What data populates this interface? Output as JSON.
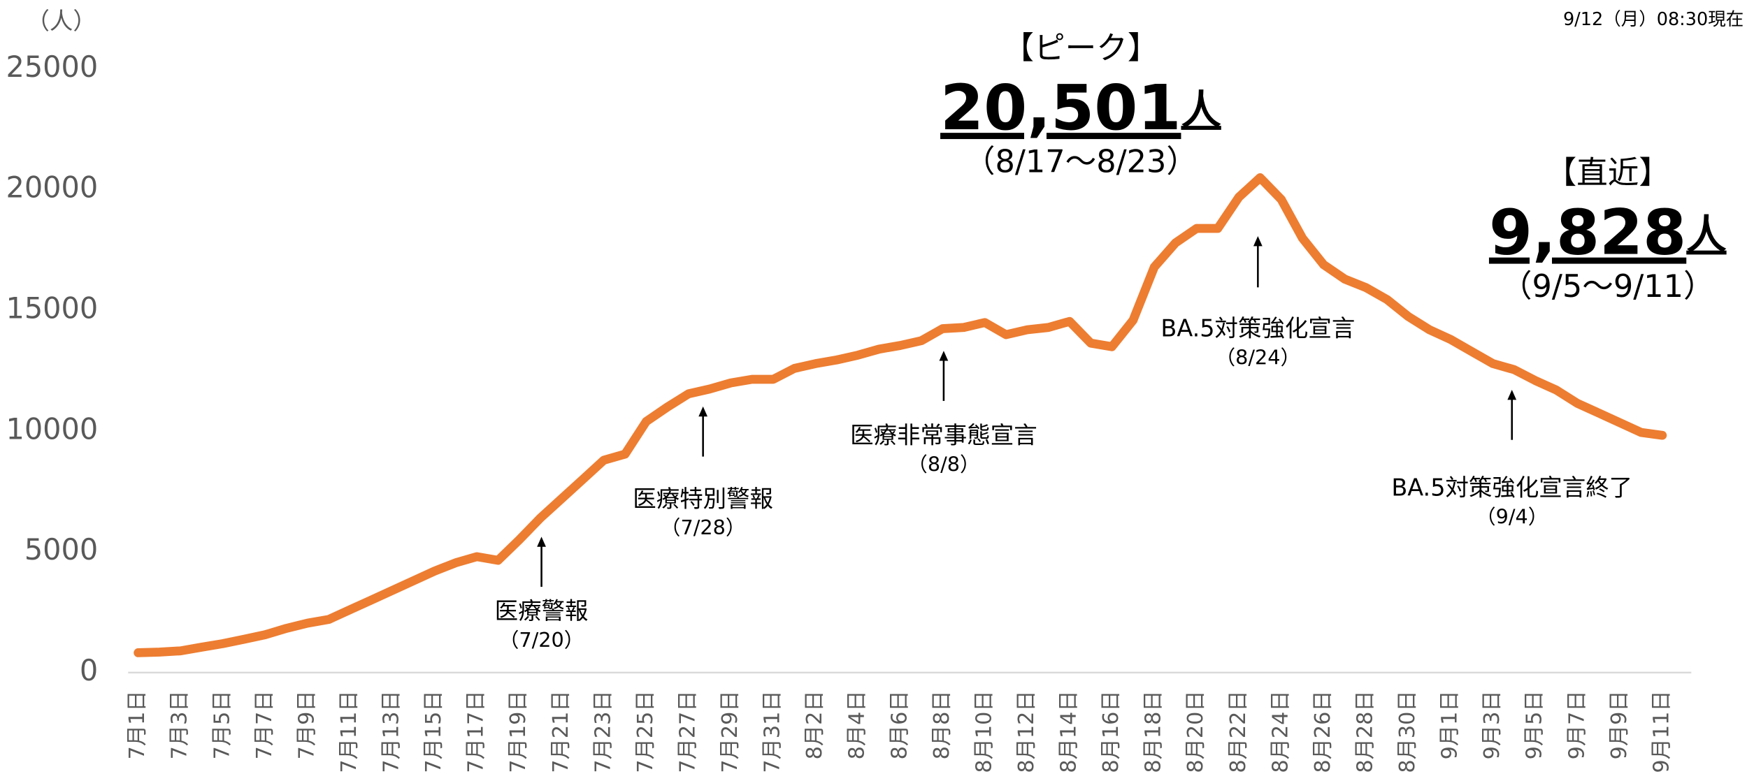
{
  "chart_data": {
    "type": "line",
    "y_unit_label": "（人）",
    "timestamp": "9/12（月）08:30現在",
    "categories": [
      "7月1日",
      null,
      "7月3日",
      null,
      "7月5日",
      null,
      "7月7日",
      null,
      "7月9日",
      null,
      "7月11日",
      null,
      "7月13日",
      null,
      "7月15日",
      null,
      "7月17日",
      null,
      "7月19日",
      null,
      "7月21日",
      null,
      "7月23日",
      null,
      "7月25日",
      null,
      "7月27日",
      null,
      "7月29日",
      null,
      "7月31日",
      null,
      "8月2日",
      null,
      "8月4日",
      null,
      "8月6日",
      null,
      "8月8日",
      null,
      "8月10日",
      null,
      "8月12日",
      null,
      "8月14日",
      null,
      "8月16日",
      null,
      "8月18日",
      null,
      "8月20日",
      null,
      "8月22日",
      null,
      "8月24日",
      null,
      "8月26日",
      null,
      "8月28日",
      null,
      "8月30日",
      null,
      "9月1日",
      null,
      "9月3日",
      null,
      "9月5日",
      null,
      "9月7日",
      null,
      "9月9日",
      null,
      "9月11日"
    ],
    "series": [
      {
        "color": "#ed7d31",
        "values": [
          820,
          850,
          900,
          1050,
          1200,
          1380,
          1570,
          1830,
          2050,
          2200,
          2600,
          3000,
          3400,
          3800,
          4200,
          4550,
          4800,
          4650,
          5500,
          6400,
          7200,
          8000,
          8800,
          9050,
          10400,
          11000,
          11550,
          11750,
          12000,
          12150,
          12150,
          12600,
          12800,
          12950,
          13150,
          13400,
          13550,
          13750,
          14250,
          14300,
          14500,
          14000,
          14200,
          14300,
          14550,
          13650,
          13500,
          14600,
          16800,
          17800,
          18400,
          18400,
          19700,
          20501,
          19600,
          18000,
          16900,
          16300,
          15950,
          15450,
          14750,
          14200,
          13800,
          13300,
          12800,
          12550,
          12100,
          11700,
          11150,
          10750,
          10350,
          9950,
          9828
        ]
      }
    ],
    "ylim": [
      0,
      25000
    ],
    "yticks": [
      0,
      5000,
      10000,
      15000,
      20000,
      25000
    ],
    "grid": false,
    "annotations": [
      {
        "text": "医療警報",
        "date": "（7/20）"
      },
      {
        "text": "医療特別警報",
        "date": "（7/28）"
      },
      {
        "text": "医療非常事態宣言",
        "date": "（8/8）"
      },
      {
        "text": "BA.5対策強化宣言",
        "date": "（8/24）"
      },
      {
        "text": "BA.5対策強化宣言終了",
        "date": "（9/4）"
      }
    ],
    "callouts": [
      {
        "label": "【ピーク】",
        "value": "20,501",
        "unit": "人",
        "period": "（8/17～8/23）"
      },
      {
        "label": "【直近】",
        "value": "9,828",
        "unit": "人",
        "period": "（9/5～9/11）"
      }
    ]
  }
}
